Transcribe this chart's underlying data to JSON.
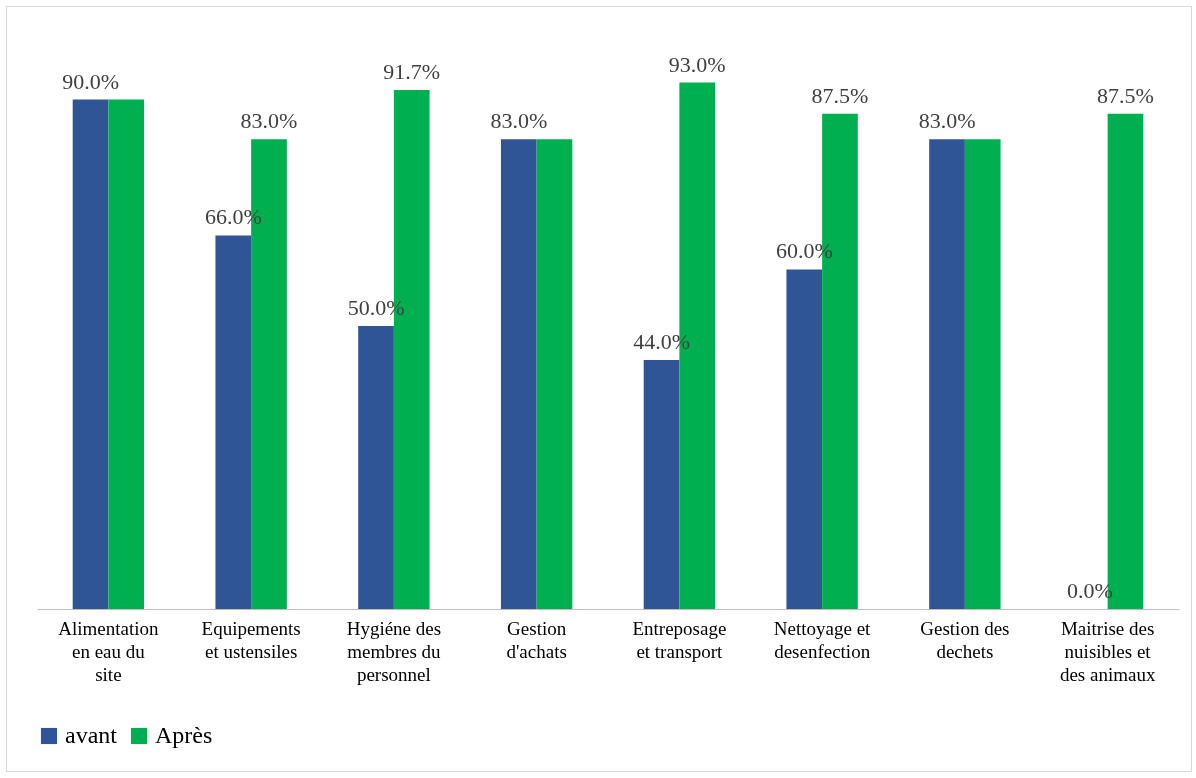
{
  "chart_data": {
    "type": "bar",
    "categories": [
      "Alimentation en eau du site",
      "Equipements et ustensiles",
      "Hygiéne des membres du personnel",
      "Gestion d'achats",
      "Entreposage et transport",
      "Nettoyage et desenfection",
      "Gestion des dechets",
      "Maitrise des nuisibles et des animaux"
    ],
    "series": [
      {
        "name": "avant",
        "color": "#2f5597",
        "values": [
          90,
          66,
          50,
          83,
          44,
          60,
          83,
          0
        ],
        "value_labels": [
          "90.0%",
          "66.0%",
          "50.0%",
          "83.0%",
          "44.0%",
          "60.0%",
          "83.0%",
          "0.0%"
        ]
      },
      {
        "name": "Après",
        "color": "#00b050",
        "values": [
          90,
          83,
          91.7,
          83,
          93,
          87.5,
          83,
          87.5
        ],
        "value_labels": [
          null,
          "83.0%",
          "91.7%",
          null,
          "93.0%",
          "87.5%",
          null,
          "87.5%"
        ]
      }
    ],
    "legend": "bottom",
    "grid": false
  }
}
